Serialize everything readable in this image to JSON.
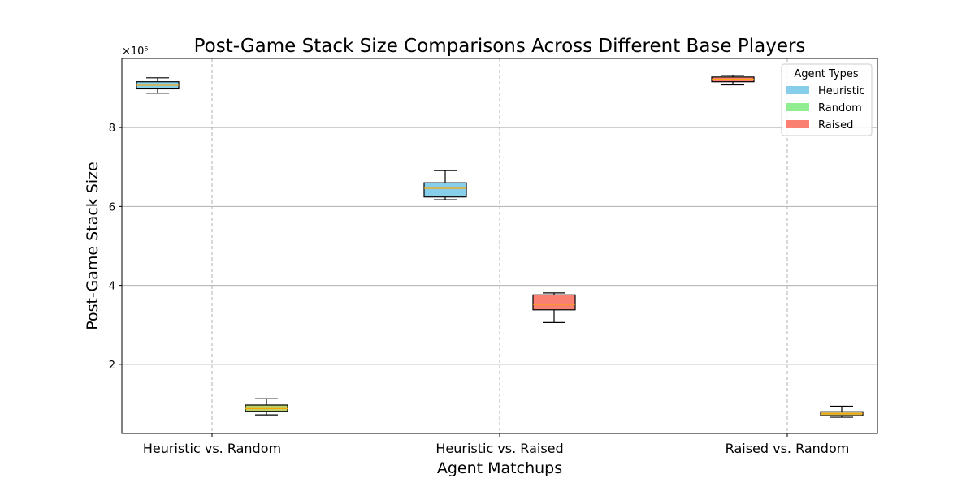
{
  "chart_data": {
    "type": "box",
    "title": "Post-Game Stack Size Comparisons Across Different Base Players",
    "xlabel": "Agent Matchups",
    "ylabel": "Post-Game Stack Size",
    "y_scale_label": "×10⁵",
    "y_multiplier": 100000,
    "ylim": [
      25000,
      975000
    ],
    "yticks": [
      200000,
      400000,
      600000,
      800000
    ],
    "ytick_labels": [
      "2",
      "4",
      "6",
      "8"
    ],
    "categories": [
      "Heuristic vs. Random",
      "Heuristic vs. Raised",
      "Raised vs. Random"
    ],
    "grid": {
      "horizontal": true,
      "vertical_dashed": true
    },
    "legend": {
      "title": "Agent Types",
      "position": "top-right",
      "entries": [
        {
          "name": "Heuristic",
          "color": "#87ceeb"
        },
        {
          "name": "Random",
          "color": "#90ee90"
        },
        {
          "name": "Raised",
          "color": "#fa8072"
        }
      ]
    },
    "boxes": [
      {
        "category_index": 0,
        "side": "left",
        "agent": "Heuristic",
        "fill": "#87ceeb",
        "whisker_low": 887000,
        "q1": 898000,
        "median": 907000,
        "q3": 916000,
        "whisker_high": 926000
      },
      {
        "category_index": 0,
        "side": "right",
        "agent": "Random",
        "fill": "#b9d36b",
        "whisker_low": 72000,
        "q1": 81000,
        "median": 88000,
        "q3": 97000,
        "whisker_high": 113000
      },
      {
        "category_index": 1,
        "side": "left",
        "agent": "Heuristic",
        "fill": "#87ceeb",
        "whisker_low": 617000,
        "q1": 624000,
        "median": 646000,
        "q3": 660000,
        "whisker_high": 691000
      },
      {
        "category_index": 1,
        "side": "right",
        "agent": "Raised",
        "fill": "#fa8072",
        "whisker_low": 306000,
        "q1": 338000,
        "median": 352000,
        "q3": 376000,
        "whisker_high": 381000
      },
      {
        "category_index": 2,
        "side": "left",
        "agent": "Raised",
        "fill": "#fa8072",
        "whisker_low": 908000,
        "q1": 916000,
        "median": 922000,
        "q3": 928000,
        "whisker_high": 932000
      },
      {
        "category_index": 2,
        "side": "right",
        "agent": "Random",
        "fill": "#c9b560",
        "whisker_low": 66000,
        "q1": 70000,
        "median": 75000,
        "q3": 80000,
        "whisker_high": 94000
      }
    ],
    "median_color": "#ffa500"
  }
}
